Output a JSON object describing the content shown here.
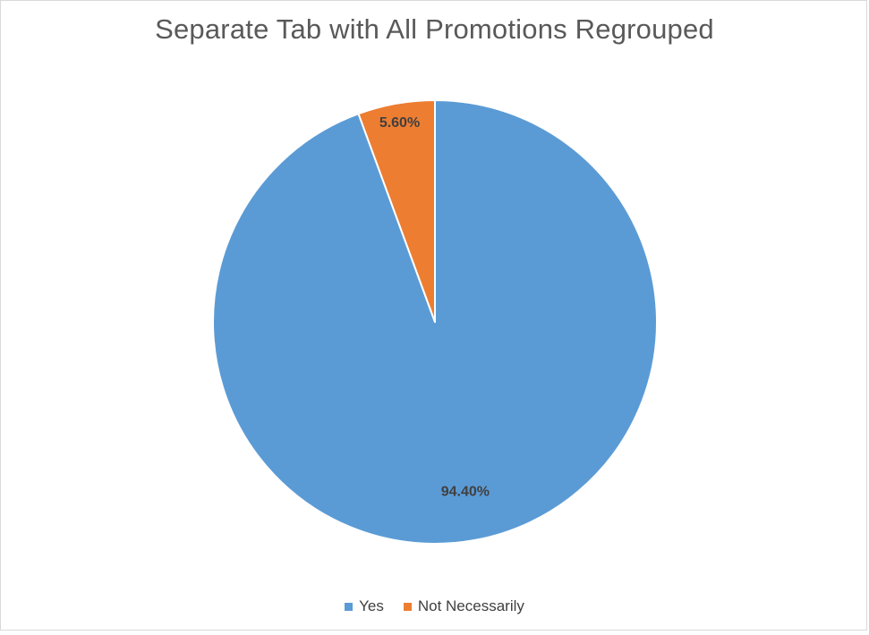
{
  "chart_data": {
    "type": "pie",
    "title": "Separate Tab with All Promotions Regrouped",
    "categories": [
      "Yes",
      "Not Necessarily"
    ],
    "values": [
      94.4,
      5.6
    ],
    "data_labels": [
      "94.40%",
      "5.60%"
    ],
    "colors": [
      "#5b9bd5",
      "#ed7d31"
    ],
    "legend_position": "bottom"
  }
}
